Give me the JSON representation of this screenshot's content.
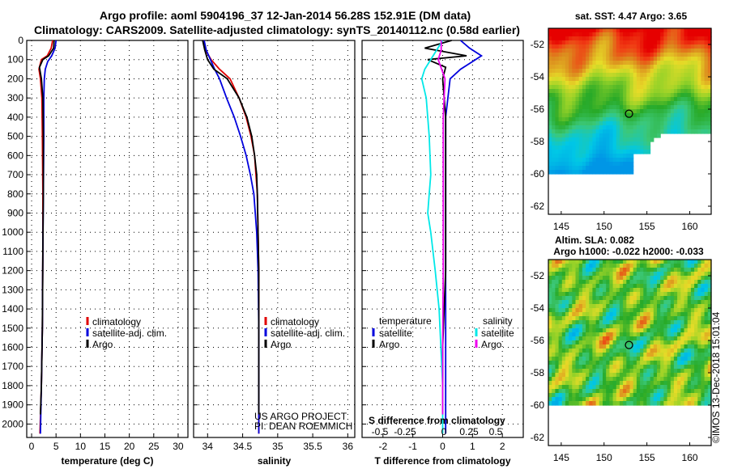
{
  "header": {
    "line1": "Argo profile: aoml 5904196_37 12-Jan-2014 56.28S 152.91E (DM data)",
    "line2": "Climatology: CARS2009. Satellite-adjusted climatology: synTS_20140112.nc (0.58d earlier)"
  },
  "colors": {
    "climatology": "#e00000",
    "satellite": "#0000dd",
    "argo": "#000000",
    "t_satellite": "#0000dd",
    "s_satellite": "#00e8e8",
    "s_argo": "#ee00ee"
  },
  "depth_axis": {
    "ticks": [
      0,
      100,
      200,
      300,
      400,
      500,
      600,
      700,
      800,
      900,
      1000,
      1100,
      1200,
      1300,
      1400,
      1500,
      1600,
      1700,
      1800,
      1900,
      2000
    ],
    "ylim": [
      0,
      2070
    ]
  },
  "chart_data": [
    {
      "type": "line",
      "name": "temperature",
      "xlabel": "temperature (deg C)",
      "xlim": [
        -1,
        32
      ],
      "xticks": [
        0,
        5,
        10,
        15,
        20,
        25,
        30
      ],
      "legend": [
        "climatology",
        "satellite-adj. clim.",
        "Argo"
      ],
      "series": [
        {
          "name": "climatology",
          "points": [
            [
              4.3,
              0
            ],
            [
              4.0,
              40
            ],
            [
              3.2,
              80
            ],
            [
              2.0,
              100
            ],
            [
              1.5,
              150
            ],
            [
              1.8,
              200
            ],
            [
              2.1,
              300
            ],
            [
              2.2,
              500
            ],
            [
              2.3,
              800
            ],
            [
              2.3,
              1100
            ],
            [
              2.2,
              1500
            ],
            [
              2.0,
              1800
            ],
            [
              1.7,
              2050
            ]
          ]
        },
        {
          "name": "satellite-adj. clim.",
          "points": [
            [
              5.0,
              0
            ],
            [
              4.8,
              40
            ],
            [
              4.1,
              80
            ],
            [
              3.3,
              110
            ],
            [
              2.8,
              150
            ],
            [
              2.6,
              200
            ],
            [
              2.5,
              300
            ],
            [
              2.5,
              500
            ],
            [
              2.4,
              800
            ],
            [
              2.3,
              1100
            ],
            [
              2.2,
              1500
            ],
            [
              2.0,
              1800
            ],
            [
              1.8,
              2050
            ]
          ]
        },
        {
          "name": "Argo",
          "points": [
            [
              4.6,
              0
            ],
            [
              4.5,
              40
            ],
            [
              3.5,
              80
            ],
            [
              2.3,
              100
            ],
            [
              1.6,
              140
            ],
            [
              2.0,
              200
            ],
            [
              2.3,
              300
            ],
            [
              2.4,
              500
            ],
            [
              2.4,
              800
            ],
            [
              2.3,
              1100
            ],
            [
              2.2,
              1500
            ],
            [
              2.0,
              1800
            ],
            [
              1.8,
              1950
            ]
          ]
        }
      ]
    },
    {
      "type": "line",
      "name": "salinity",
      "xlabel": "salinity",
      "xlim": [
        33.8,
        36.1
      ],
      "xticks": [
        34,
        34.5,
        35,
        35.5,
        36
      ],
      "legend": [
        "climatology",
        "satellite-adj. clim.",
        "Argo"
      ],
      "annotations": [
        "US ARGO PROJECT",
        "PI: DEAN ROEMMICH"
      ],
      "series": [
        {
          "name": "climatology",
          "points": [
            [
              33.94,
              0
            ],
            [
              33.97,
              50
            ],
            [
              34.05,
              100
            ],
            [
              34.17,
              150
            ],
            [
              34.32,
              200
            ],
            [
              34.45,
              300
            ],
            [
              34.55,
              400
            ],
            [
              34.62,
              500
            ],
            [
              34.67,
              600
            ],
            [
              34.69,
              700
            ],
            [
              34.71,
              800
            ],
            [
              34.72,
              1000
            ],
            [
              34.73,
              1200
            ],
            [
              34.73,
              1500
            ],
            [
              34.73,
              1800
            ],
            [
              34.73,
              2050
            ]
          ]
        },
        {
          "name": "satellite-adj. clim.",
          "points": [
            [
              33.95,
              0
            ],
            [
              33.98,
              50
            ],
            [
              34.04,
              100
            ],
            [
              34.1,
              150
            ],
            [
              34.17,
              200
            ],
            [
              34.27,
              300
            ],
            [
              34.38,
              400
            ],
            [
              34.47,
              500
            ],
            [
              34.55,
              600
            ],
            [
              34.61,
              700
            ],
            [
              34.66,
              800
            ],
            [
              34.7,
              1000
            ],
            [
              34.72,
              1200
            ],
            [
              34.73,
              1500
            ],
            [
              34.73,
              1800
            ],
            [
              34.73,
              2050
            ]
          ]
        },
        {
          "name": "Argo",
          "points": [
            [
              33.93,
              0
            ],
            [
              33.96,
              50
            ],
            [
              34.0,
              100
            ],
            [
              34.09,
              150
            ],
            [
              34.28,
              200
            ],
            [
              34.45,
              300
            ],
            [
              34.56,
              400
            ],
            [
              34.63,
              500
            ],
            [
              34.67,
              600
            ],
            [
              34.7,
              700
            ],
            [
              34.71,
              800
            ],
            [
              34.72,
              1000
            ],
            [
              34.73,
              1200
            ],
            [
              34.73,
              1500
            ],
            [
              34.73,
              1800
            ],
            [
              34.73,
              1950
            ]
          ]
        }
      ]
    },
    {
      "type": "line",
      "name": "difference",
      "xlabel": "T difference from climatology",
      "xlabel_top": "S difference from climatology",
      "xlim": [
        -2.7,
        2.7
      ],
      "xticks": [
        -2,
        -1,
        0,
        1,
        2
      ],
      "top_ticks": [
        "-0.5",
        "-0.25",
        "0",
        "0.25",
        "0.5"
      ],
      "legend_left_title": "temperature",
      "legend_right_title": "salinity",
      "legend_left": [
        "satellite",
        "Argo"
      ],
      "legend_right": [
        "satellite",
        "Argo"
      ],
      "series": [
        {
          "name": "T satellite",
          "points": [
            [
              0.6,
              0
            ],
            [
              0.9,
              40
            ],
            [
              1.3,
              80
            ],
            [
              1.0,
              110
            ],
            [
              0.6,
              150
            ],
            [
              0.25,
              200
            ],
            [
              0.1,
              400
            ],
            [
              0.1,
              800
            ],
            [
              0.1,
              1200
            ],
            [
              0.1,
              1600
            ],
            [
              0.1,
              2050
            ]
          ]
        },
        {
          "name": "T Argo",
          "points": [
            [
              0.3,
              0
            ],
            [
              -0.6,
              40
            ],
            [
              0.8,
              80
            ],
            [
              -0.5,
              100
            ],
            [
              0.1,
              140
            ],
            [
              0.0,
              200
            ],
            [
              0.1,
              400
            ],
            [
              0.1,
              800
            ],
            [
              0.1,
              1200
            ],
            [
              0.0,
              1600
            ],
            [
              0.0,
              1950
            ]
          ]
        },
        {
          "name": "S satellite",
          "points": [
            [
              0.0,
              0
            ],
            [
              -0.2,
              50
            ],
            [
              -0.6,
              150
            ],
            [
              -0.7,
              200
            ],
            [
              -0.55,
              300
            ],
            [
              -0.45,
              500
            ],
            [
              -0.4,
              700
            ],
            [
              -0.45,
              800
            ],
            [
              -0.5,
              900
            ],
            [
              -0.4,
              1000
            ],
            [
              -0.25,
              1200
            ],
            [
              -0.12,
              1400
            ],
            [
              -0.06,
              1600
            ],
            [
              0.0,
              1800
            ],
            [
              0.0,
              2050
            ]
          ]
        },
        {
          "name": "S Argo",
          "points": [
            [
              -0.05,
              0
            ],
            [
              -0.05,
              50
            ],
            [
              -0.15,
              100
            ],
            [
              0.08,
              200
            ],
            [
              0.02,
              400
            ],
            [
              0.02,
              800
            ],
            [
              0.02,
              1200
            ],
            [
              0.0,
              1600
            ],
            [
              0.0,
              1950
            ]
          ]
        }
      ]
    },
    {
      "type": "heatmap",
      "name": "sat-sst-map",
      "title": "sat. SST: 4.47 Argo: 3.65",
      "xlim": [
        143.5,
        162.5
      ],
      "ylim": [
        -62.5,
        -51
      ],
      "xticks": [
        145,
        150,
        155,
        160
      ],
      "yticks": [
        -52,
        -54,
        -56,
        -58,
        -60,
        -62
      ],
      "argo_position": [
        152.91,
        -56.28
      ]
    },
    {
      "type": "heatmap",
      "name": "altimetry-sla-map",
      "title": "Altim. SLA: 0.082",
      "subtitle": "Argo h1000: -0.022 h2000: -0.033",
      "xlim": [
        143.5,
        162.5
      ],
      "ylim": [
        -62.5,
        -51
      ],
      "xticks": [
        145,
        150,
        155,
        160
      ],
      "yticks": [
        -52,
        -54,
        -56,
        -58,
        -60,
        -62
      ],
      "argo_position": [
        152.91,
        -56.28
      ]
    }
  ],
  "credit": "©IMOS 13-Dec-2018 15:01:04"
}
